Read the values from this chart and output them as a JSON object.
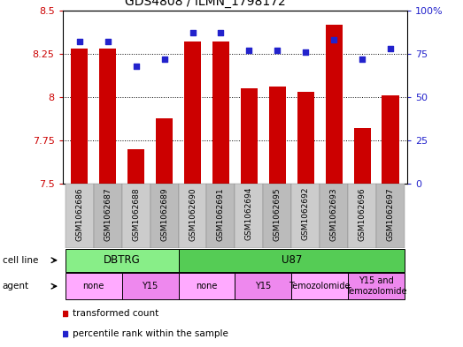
{
  "title": "GDS4808 / ILMN_1798172",
  "samples": [
    "GSM1062686",
    "GSM1062687",
    "GSM1062688",
    "GSM1062689",
    "GSM1062690",
    "GSM1062691",
    "GSM1062694",
    "GSM1062695",
    "GSM1062692",
    "GSM1062693",
    "GSM1062696",
    "GSM1062697"
  ],
  "transformed_counts": [
    8.28,
    8.28,
    7.7,
    7.88,
    8.32,
    8.32,
    8.05,
    8.06,
    8.03,
    8.42,
    7.82,
    8.01
  ],
  "percentile_ranks": [
    82,
    82,
    68,
    72,
    87,
    87,
    77,
    77,
    76,
    83,
    72,
    78
  ],
  "ylim_left": [
    7.5,
    8.5
  ],
  "ylim_right": [
    0,
    100
  ],
  "yticks_left": [
    7.5,
    7.75,
    8.0,
    8.25,
    8.5
  ],
  "yticks_left_labels": [
    "7.5",
    "7.75",
    "8",
    "8.25",
    "8.5"
  ],
  "yticks_right": [
    0,
    25,
    50,
    75,
    100
  ],
  "yticks_right_labels": [
    "0",
    "25",
    "50",
    "75",
    "100%"
  ],
  "bar_color": "#cc0000",
  "dot_color": "#2222cc",
  "bar_bottom": 7.5,
  "cell_line_groups": [
    {
      "label": "DBTRG",
      "start": 0,
      "end": 3,
      "color": "#88ee88"
    },
    {
      "label": "U87",
      "start": 4,
      "end": 11,
      "color": "#55cc55"
    }
  ],
  "agent_groups": [
    {
      "label": "none",
      "start": 0,
      "end": 1,
      "color": "#ffaaff"
    },
    {
      "label": "Y15",
      "start": 2,
      "end": 3,
      "color": "#ee88ee"
    },
    {
      "label": "none",
      "start": 4,
      "end": 5,
      "color": "#ffaaff"
    },
    {
      "label": "Y15",
      "start": 6,
      "end": 7,
      "color": "#ee88ee"
    },
    {
      "label": "Temozolomide",
      "start": 8,
      "end": 9,
      "color": "#ffaaff"
    },
    {
      "label": "Y15 and\nTemozolomide",
      "start": 10,
      "end": 11,
      "color": "#ee88ee"
    }
  ],
  "legend_items": [
    {
      "label": "transformed count",
      "color": "#cc0000"
    },
    {
      "label": "percentile rank within the sample",
      "color": "#2222cc"
    }
  ],
  "background_color": "#ffffff",
  "tick_color_left": "#cc0000",
  "tick_color_right": "#2222cc",
  "xtick_area_color": "#cccccc"
}
